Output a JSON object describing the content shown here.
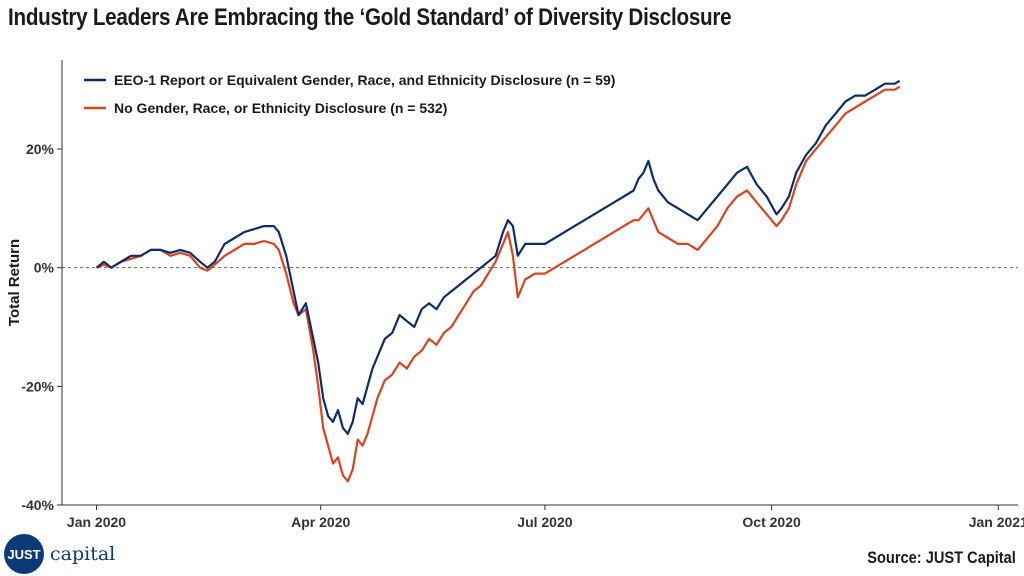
{
  "title": "Industry Leaders Are Embracing the ‘Gold Standard’ of Diversity Disclosure",
  "source": "Source: JUST Capital",
  "logo": {
    "badge": "JUST",
    "word": "capital"
  },
  "colors": {
    "series_a": "#0c2d6b",
    "series_b": "#d9441f",
    "logo": "#0c3a78"
  },
  "chart_data": {
    "type": "line",
    "title": "Industry Leaders Are Embracing the ‘Gold Standard’ of Diversity Disclosure",
    "xlabel": "",
    "ylabel": "Total Return",
    "x_range_days": [
      0,
      366
    ],
    "ylim": [
      -40,
      35
    ],
    "y_ticks": [
      20,
      0,
      -20,
      -40
    ],
    "y_tick_labels": [
      "20%",
      "0%",
      "-20%",
      "-40%"
    ],
    "x_ticks": [
      0,
      91,
      182,
      274,
      366
    ],
    "x_tick_labels": [
      "Jan 2020",
      "Apr 2020",
      "Jul 2020",
      "Oct 2020",
      "Jan 2021"
    ],
    "reference_line": 0,
    "legend_position": "top-left",
    "series": [
      {
        "name": "EEO-1 Report or Equivalent Gender, Race, and Ethnicity Disclosure (n = 59)",
        "color": "#0c2d6b",
        "points": [
          [
            0,
            0
          ],
          [
            3,
            1
          ],
          [
            6,
            0
          ],
          [
            10,
            1
          ],
          [
            14,
            2
          ],
          [
            18,
            2
          ],
          [
            22,
            3
          ],
          [
            26,
            3
          ],
          [
            30,
            2.5
          ],
          [
            34,
            3
          ],
          [
            38,
            2.5
          ],
          [
            42,
            1
          ],
          [
            45,
            0
          ],
          [
            48,
            1
          ],
          [
            52,
            4
          ],
          [
            56,
            5
          ],
          [
            60,
            6
          ],
          [
            64,
            6.5
          ],
          [
            68,
            7
          ],
          [
            72,
            7
          ],
          [
            74,
            6
          ],
          [
            77,
            2
          ],
          [
            80,
            -4
          ],
          [
            82,
            -8
          ],
          [
            85,
            -6
          ],
          [
            88,
            -12
          ],
          [
            90,
            -16
          ],
          [
            92,
            -22
          ],
          [
            94,
            -25
          ],
          [
            96,
            -26
          ],
          [
            98,
            -24
          ],
          [
            100,
            -27
          ],
          [
            102,
            -28
          ],
          [
            104,
            -26
          ],
          [
            106,
            -22
          ],
          [
            108,
            -23
          ],
          [
            110,
            -20
          ],
          [
            112,
            -17
          ],
          [
            114,
            -15
          ],
          [
            117,
            -12
          ],
          [
            120,
            -11
          ],
          [
            123,
            -8
          ],
          [
            126,
            -9
          ],
          [
            129,
            -10
          ],
          [
            132,
            -7
          ],
          [
            135,
            -6
          ],
          [
            138,
            -7
          ],
          [
            141,
            -5
          ],
          [
            144,
            -4
          ],
          [
            147,
            -3
          ],
          [
            150,
            -2
          ],
          [
            153,
            -1
          ],
          [
            156,
            0
          ],
          [
            159,
            1
          ],
          [
            162,
            2
          ],
          [
            165,
            6
          ],
          [
            167,
            8
          ],
          [
            169,
            7
          ],
          [
            171,
            2
          ],
          [
            174,
            4
          ],
          [
            178,
            4
          ],
          [
            182,
            4
          ],
          [
            186,
            5
          ],
          [
            190,
            6
          ],
          [
            194,
            7
          ],
          [
            198,
            8
          ],
          [
            202,
            9
          ],
          [
            206,
            10
          ],
          [
            210,
            11
          ],
          [
            214,
            12
          ],
          [
            218,
            13
          ],
          [
            220,
            15
          ],
          [
            222,
            16
          ],
          [
            224,
            18
          ],
          [
            226,
            15
          ],
          [
            228,
            13
          ],
          [
            232,
            11
          ],
          [
            236,
            10
          ],
          [
            240,
            9
          ],
          [
            244,
            8
          ],
          [
            248,
            10
          ],
          [
            252,
            12
          ],
          [
            256,
            14
          ],
          [
            260,
            16
          ],
          [
            264,
            17
          ],
          [
            268,
            14
          ],
          [
            272,
            12
          ],
          [
            276,
            9
          ],
          [
            278,
            10
          ],
          [
            281,
            12
          ],
          [
            284,
            16
          ],
          [
            288,
            19
          ],
          [
            292,
            21
          ],
          [
            296,
            24
          ],
          [
            300,
            26
          ],
          [
            304,
            28
          ],
          [
            308,
            29
          ],
          [
            312,
            29
          ],
          [
            316,
            30
          ],
          [
            320,
            31
          ],
          [
            324,
            31
          ],
          [
            326,
            31.5
          ]
        ]
      },
      {
        "name": "No Gender, Race, or Ethnicity Disclosure (n = 532)",
        "color": "#d9441f",
        "points": [
          [
            0,
            0
          ],
          [
            3,
            0.5
          ],
          [
            6,
            0
          ],
          [
            10,
            1
          ],
          [
            14,
            1.5
          ],
          [
            18,
            2
          ],
          [
            22,
            3
          ],
          [
            26,
            3
          ],
          [
            30,
            2
          ],
          [
            34,
            2.5
          ],
          [
            38,
            2
          ],
          [
            42,
            0
          ],
          [
            45,
            -0.5
          ],
          [
            48,
            0.5
          ],
          [
            52,
            2
          ],
          [
            56,
            3
          ],
          [
            60,
            4
          ],
          [
            64,
            4
          ],
          [
            68,
            4.5
          ],
          [
            72,
            4
          ],
          [
            74,
            3
          ],
          [
            77,
            -1
          ],
          [
            80,
            -6
          ],
          [
            82,
            -8
          ],
          [
            85,
            -7
          ],
          [
            88,
            -14
          ],
          [
            90,
            -20
          ],
          [
            92,
            -27
          ],
          [
            94,
            -30
          ],
          [
            96,
            -33
          ],
          [
            98,
            -32
          ],
          [
            100,
            -35
          ],
          [
            102,
            -36
          ],
          [
            104,
            -34
          ],
          [
            106,
            -29
          ],
          [
            108,
            -30
          ],
          [
            110,
            -28
          ],
          [
            112,
            -25
          ],
          [
            114,
            -22
          ],
          [
            117,
            -19
          ],
          [
            120,
            -18
          ],
          [
            123,
            -16
          ],
          [
            126,
            -17
          ],
          [
            129,
            -15
          ],
          [
            132,
            -14
          ],
          [
            135,
            -12
          ],
          [
            138,
            -13
          ],
          [
            141,
            -11
          ],
          [
            144,
            -10
          ],
          [
            147,
            -8
          ],
          [
            150,
            -6
          ],
          [
            153,
            -4
          ],
          [
            156,
            -3
          ],
          [
            159,
            -1
          ],
          [
            162,
            1
          ],
          [
            165,
            4
          ],
          [
            167,
            6
          ],
          [
            169,
            2
          ],
          [
            171,
            -5
          ],
          [
            174,
            -2
          ],
          [
            178,
            -1
          ],
          [
            182,
            -1
          ],
          [
            186,
            0
          ],
          [
            190,
            1
          ],
          [
            194,
            2
          ],
          [
            198,
            3
          ],
          [
            202,
            4
          ],
          [
            206,
            5
          ],
          [
            210,
            6
          ],
          [
            214,
            7
          ],
          [
            218,
            8
          ],
          [
            220,
            8
          ],
          [
            222,
            9
          ],
          [
            224,
            10
          ],
          [
            226,
            8
          ],
          [
            228,
            6
          ],
          [
            232,
            5
          ],
          [
            236,
            4
          ],
          [
            240,
            4
          ],
          [
            244,
            3
          ],
          [
            248,
            5
          ],
          [
            252,
            7
          ],
          [
            256,
            10
          ],
          [
            260,
            12
          ],
          [
            264,
            13
          ],
          [
            268,
            11
          ],
          [
            272,
            9
          ],
          [
            276,
            7
          ],
          [
            278,
            8
          ],
          [
            281,
            10
          ],
          [
            284,
            14
          ],
          [
            288,
            18
          ],
          [
            292,
            20
          ],
          [
            296,
            22
          ],
          [
            300,
            24
          ],
          [
            304,
            26
          ],
          [
            308,
            27
          ],
          [
            312,
            28
          ],
          [
            316,
            29
          ],
          [
            320,
            30
          ],
          [
            324,
            30
          ],
          [
            326,
            30.5
          ]
        ]
      }
    ]
  }
}
